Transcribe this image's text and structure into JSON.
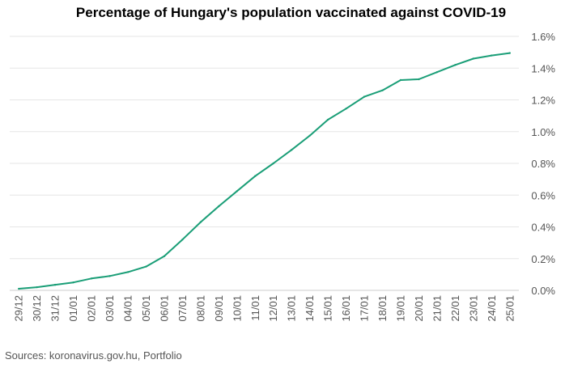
{
  "chart_data": {
    "type": "line",
    "title": "Percentage of Hungary's population vaccinated against COVID-19",
    "xlabel": "",
    "ylabel": "",
    "x": [
      "29/12",
      "30/12",
      "31/12",
      "01/01",
      "02/01",
      "03/01",
      "04/01",
      "05/01",
      "06/01",
      "07/01",
      "08/01",
      "09/01",
      "10/01",
      "11/01",
      "12/01",
      "13/01",
      "14/01",
      "15/01",
      "16/01",
      "17/01",
      "18/01",
      "19/01",
      "20/01",
      "21/01",
      "22/01",
      "23/01",
      "24/01",
      "25/01"
    ],
    "series": [
      {
        "name": "",
        "color": "#1a9e77",
        "values": [
          0.01,
          0.02,
          0.035,
          0.05,
          0.075,
          0.09,
          0.115,
          0.15,
          0.215,
          0.32,
          0.43,
          0.53,
          0.625,
          0.72,
          0.8,
          0.885,
          0.975,
          1.075,
          1.145,
          1.22,
          1.26,
          1.325,
          1.33,
          1.375,
          1.42,
          1.46,
          1.48,
          1.495
        ]
      }
    ],
    "ylim": [
      0,
      1.6
    ],
    "yticks": [
      "0.0%",
      "0.2%",
      "0.4%",
      "0.6%",
      "0.8%",
      "1.0%",
      "1.2%",
      "1.4%",
      "1.6%"
    ],
    "y_axis_position": "right",
    "grid": true
  },
  "source": "Sources: koronavirus.gov.hu, Portfolio",
  "colors": {
    "line": "#1a9e77",
    "grid": "#e6e6e6",
    "tick_text": "#555555"
  }
}
